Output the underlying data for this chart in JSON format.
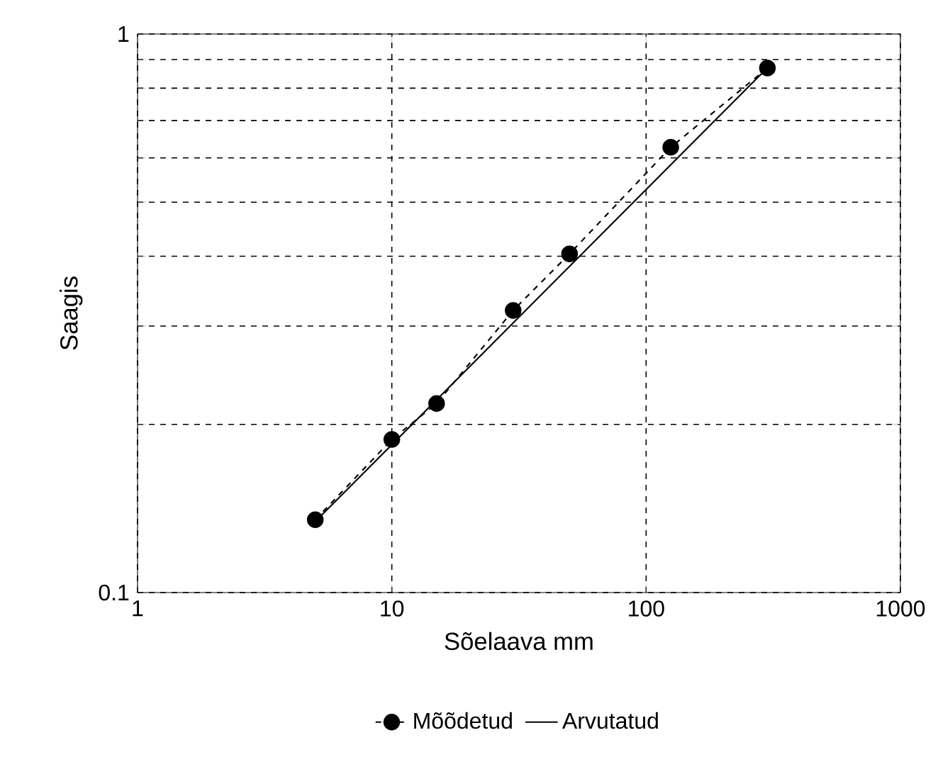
{
  "chart_data": {
    "type": "line",
    "xlabel": "Sõelaava mm",
    "ylabel": "Saagis",
    "log": "xy",
    "grid": true,
    "legend": "bottom",
    "xlim": [
      1,
      1000
    ],
    "ylim": [
      0.1,
      1
    ],
    "xticks": [
      1,
      10,
      100,
      1000
    ],
    "yticks": [
      0.1,
      {
        "value": 0.2,
        "label": null
      },
      {
        "value": 0.3,
        "label": null
      },
      {
        "value": 0.4,
        "label": null
      },
      {
        "value": 0.5,
        "label": null
      },
      {
        "value": 0.6,
        "label": null
      },
      {
        "value": 0.7,
        "label": null
      },
      {
        "value": 0.8,
        "label": null
      },
      {
        "value": 0.9,
        "label": null
      },
      1
    ],
    "series": [
      {
        "name": "Mõõdetud",
        "color": "#000000",
        "marker": "circle",
        "line_style": "dashed",
        "x": [
          5,
          10,
          15,
          30,
          50,
          125,
          300
        ],
        "values": [
          0.135,
          0.188,
          0.218,
          0.32,
          0.404,
          0.627,
          0.869
        ]
      },
      {
        "name": "Arvutatud",
        "color": "#000000",
        "marker": "none",
        "line_style": "solid",
        "x": [
          5,
          300
        ],
        "values": [
          0.134,
          0.87
        ]
      }
    ]
  }
}
